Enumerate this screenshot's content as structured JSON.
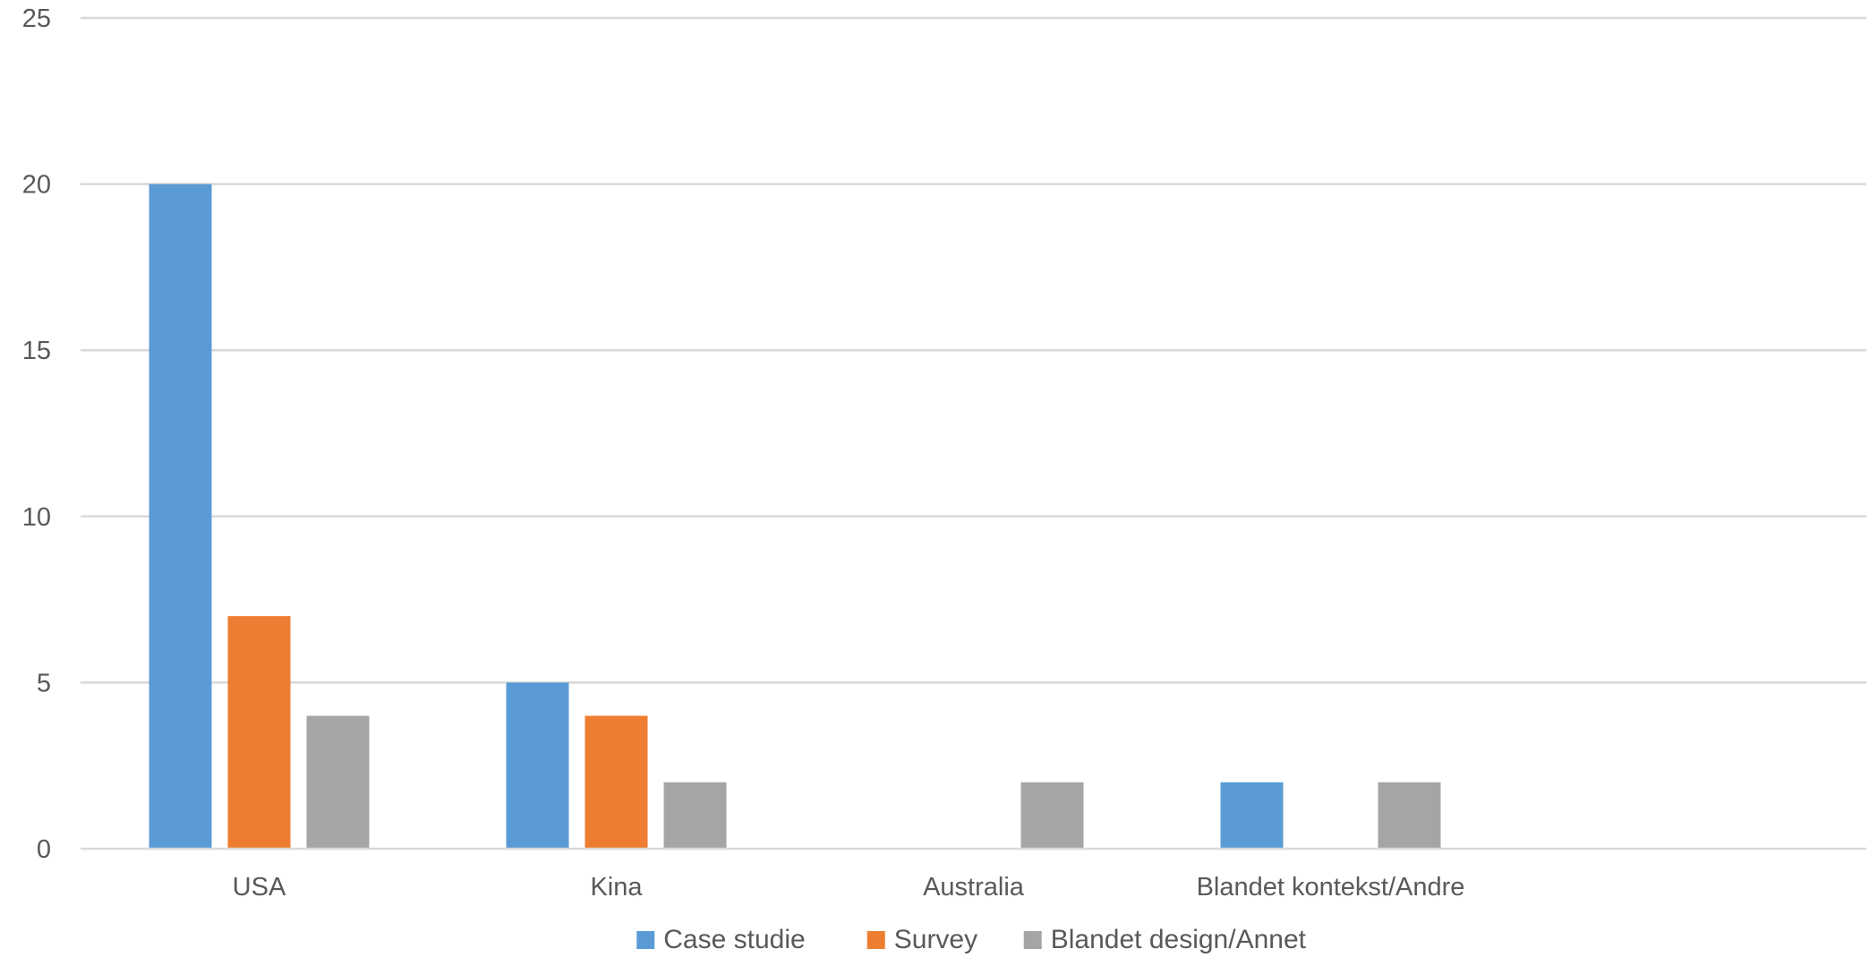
{
  "chart_data": {
    "type": "bar",
    "title": "",
    "xlabel": "",
    "ylabel": "",
    "categories": [
      "USA",
      "Kina",
      "Australia",
      "Blandet kontekst/Andre",
      ""
    ],
    "series": [
      {
        "name": "Case studie",
        "color": "#5b9bd5",
        "values": [
          20,
          5,
          0,
          2,
          0
        ]
      },
      {
        "name": "Survey",
        "color": "#ed7d31",
        "values": [
          7,
          4,
          0,
          0,
          0
        ]
      },
      {
        "name": "Blandet design/Annet",
        "color": "#a5a5a5",
        "values": [
          4,
          2,
          2,
          2,
          0
        ]
      }
    ],
    "ylim": [
      0,
      25
    ],
    "yticks": [
      0,
      5,
      10,
      15,
      20,
      25
    ],
    "grid": true,
    "legend": "bottom"
  }
}
